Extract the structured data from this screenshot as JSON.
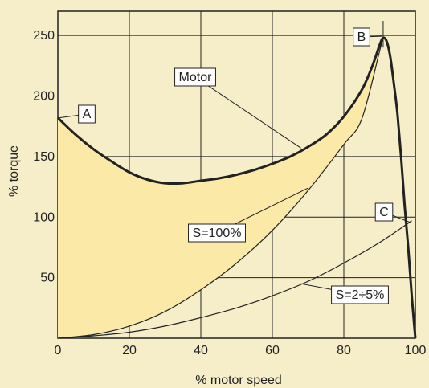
{
  "chart_data": {
    "type": "line",
    "xlabel": "% motor speed",
    "ylabel": "% torque",
    "xlim": [
      0,
      100
    ],
    "ylim": [
      0,
      270
    ],
    "x_ticks": [
      0,
      20,
      40,
      60,
      80,
      100
    ],
    "y_ticks": [
      50,
      100,
      150,
      200,
      250
    ],
    "grid": true,
    "colors": {
      "background": "#f5eec8",
      "fill": "#fbe9a8",
      "line": "#222222"
    },
    "series": [
      {
        "name": "Motor",
        "x": [
          0,
          5,
          10,
          15,
          20,
          25,
          30,
          35,
          40,
          45,
          50,
          55,
          60,
          65,
          70,
          75,
          80,
          85,
          88,
          90,
          91,
          92,
          93,
          94,
          95,
          96,
          97,
          98,
          99,
          100
        ],
        "y": [
          182,
          168,
          156,
          146,
          137,
          131,
          128,
          128,
          130,
          132,
          135,
          139,
          144,
          150,
          158,
          168,
          183,
          205,
          225,
          242,
          248,
          245,
          232,
          210,
          185,
          150,
          110,
          75,
          35,
          0
        ]
      },
      {
        "name": "S=100%",
        "x": [
          0,
          10,
          20,
          30,
          40,
          50,
          60,
          70,
          80,
          85,
          90,
          91
        ],
        "y": [
          0,
          3,
          10,
          22,
          40,
          62,
          89,
          122,
          160,
          181,
          237,
          248
        ]
      },
      {
        "name": "S=2÷5%",
        "x": [
          0,
          10,
          20,
          30,
          40,
          50,
          60,
          70,
          80,
          90,
          99
        ],
        "y": [
          0,
          2,
          5,
          10,
          17,
          25,
          35,
          47,
          62,
          79,
          97
        ]
      }
    ],
    "points": [
      {
        "label": "A",
        "x": 0,
        "y": 182
      },
      {
        "label": "B",
        "x": 91,
        "y": 248
      },
      {
        "label": "C",
        "x": 99,
        "y": 97
      }
    ],
    "annotations": [
      "Motor",
      "S=100%",
      "S=2÷5%"
    ]
  }
}
